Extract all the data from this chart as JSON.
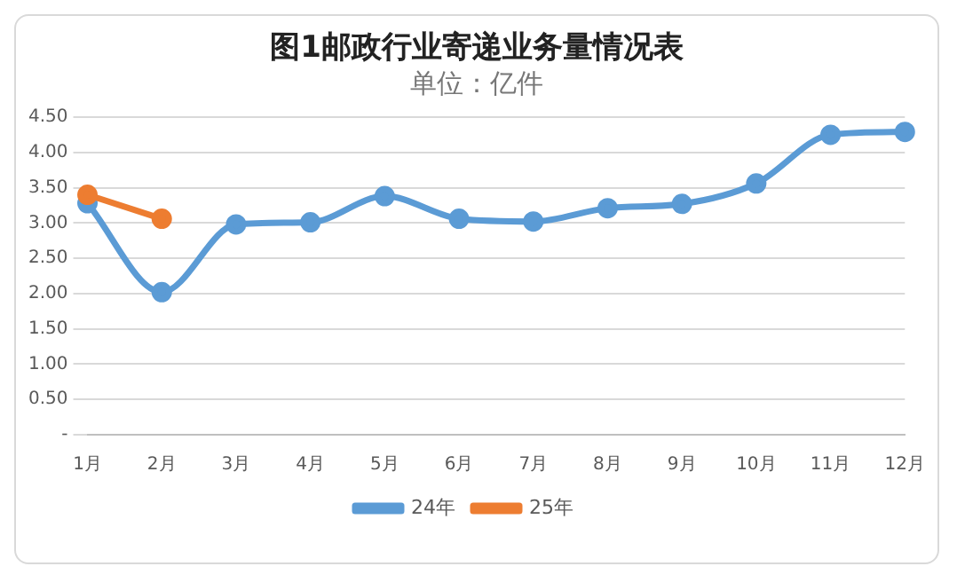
{
  "chart_data": {
    "type": "line",
    "title": "图1邮政行业寄递业务量情况表",
    "subtitle": "单位：亿件",
    "categories": [
      "1月",
      "2月",
      "3月",
      "4月",
      "5月",
      "6月",
      "7月",
      "8月",
      "9月",
      "10月",
      "11月",
      "12月"
    ],
    "series": [
      {
        "name": "24年",
        "color": "#5b9bd5",
        "values": [
          3.28,
          2.02,
          2.98,
          3.01,
          3.38,
          3.06,
          3.02,
          3.21,
          3.27,
          3.56,
          4.25,
          4.29
        ]
      },
      {
        "name": "25年",
        "color": "#ed7d31",
        "values": [
          3.4,
          3.06,
          null,
          null,
          null,
          null,
          null,
          null,
          null,
          null,
          null,
          null
        ]
      }
    ],
    "ylim": [
      0,
      4.5
    ],
    "yticks": [
      {
        "value": 0,
        "label": "-"
      },
      {
        "value": 0.5,
        "label": "0.50"
      },
      {
        "value": 1,
        "label": "1.00"
      },
      {
        "value": 1.5,
        "label": "1.50"
      },
      {
        "value": 2,
        "label": "2.00"
      },
      {
        "value": 2.5,
        "label": "2.50"
      },
      {
        "value": 3,
        "label": "3.00"
      },
      {
        "value": 3.5,
        "label": "3.50"
      },
      {
        "value": 4,
        "label": "4.00"
      },
      {
        "value": 4.5,
        "label": "4.50"
      }
    ],
    "grid": "y",
    "legend": "bottom",
    "marker": "circle",
    "line_style": "solid"
  }
}
